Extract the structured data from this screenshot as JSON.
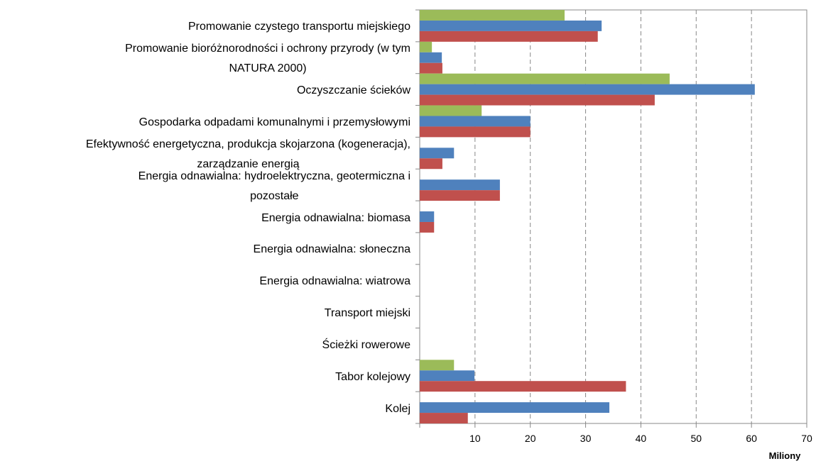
{
  "chart_data": {
    "type": "hbar",
    "categories": [
      "Promowanie czystego transportu miejskiego",
      "Promowanie bioróżnorodności i ochrony przyrody (w tym\nNATURA 2000)",
      "Oczyszczanie ścieków",
      "Gospodarka odpadami komunalnymi i przemysłowymi",
      "Efektywność energetyczna, produkcja skojarzona (kogeneracja),\nzarządzanie energią",
      "Energia odnawialna: hydroelektryczna, geotermiczna i\npozostałe",
      "Energia odnawialna: biomasa",
      "Energia odnawialna: słoneczna",
      "Energia odnawialna: wiatrowa",
      "Transport miejski",
      "Ścieżki rowerowe",
      "Tabor kolejowy",
      "Kolej"
    ],
    "series": [
      {
        "color": "#9bbb59",
        "values": [
          26.2,
          2.2,
          45.2,
          11.2,
          null,
          null,
          null,
          null,
          null,
          null,
          null,
          6.2,
          null
        ]
      },
      {
        "color": "#4f81bd",
        "values": [
          32.9,
          4.0,
          60.6,
          20.0,
          6.2,
          14.5,
          2.6,
          null,
          null,
          null,
          null,
          9.9,
          34.3
        ]
      },
      {
        "color": "#c0504d",
        "values": [
          32.2,
          4.1,
          42.5,
          20.0,
          4.1,
          14.5,
          2.6,
          null,
          null,
          null,
          null,
          37.3,
          8.7
        ]
      }
    ],
    "xlim": [
      0,
      70
    ],
    "xticks": [
      10,
      20,
      30,
      40,
      50,
      60,
      70
    ],
    "xlabel": "Miliony",
    "grid": true
  }
}
